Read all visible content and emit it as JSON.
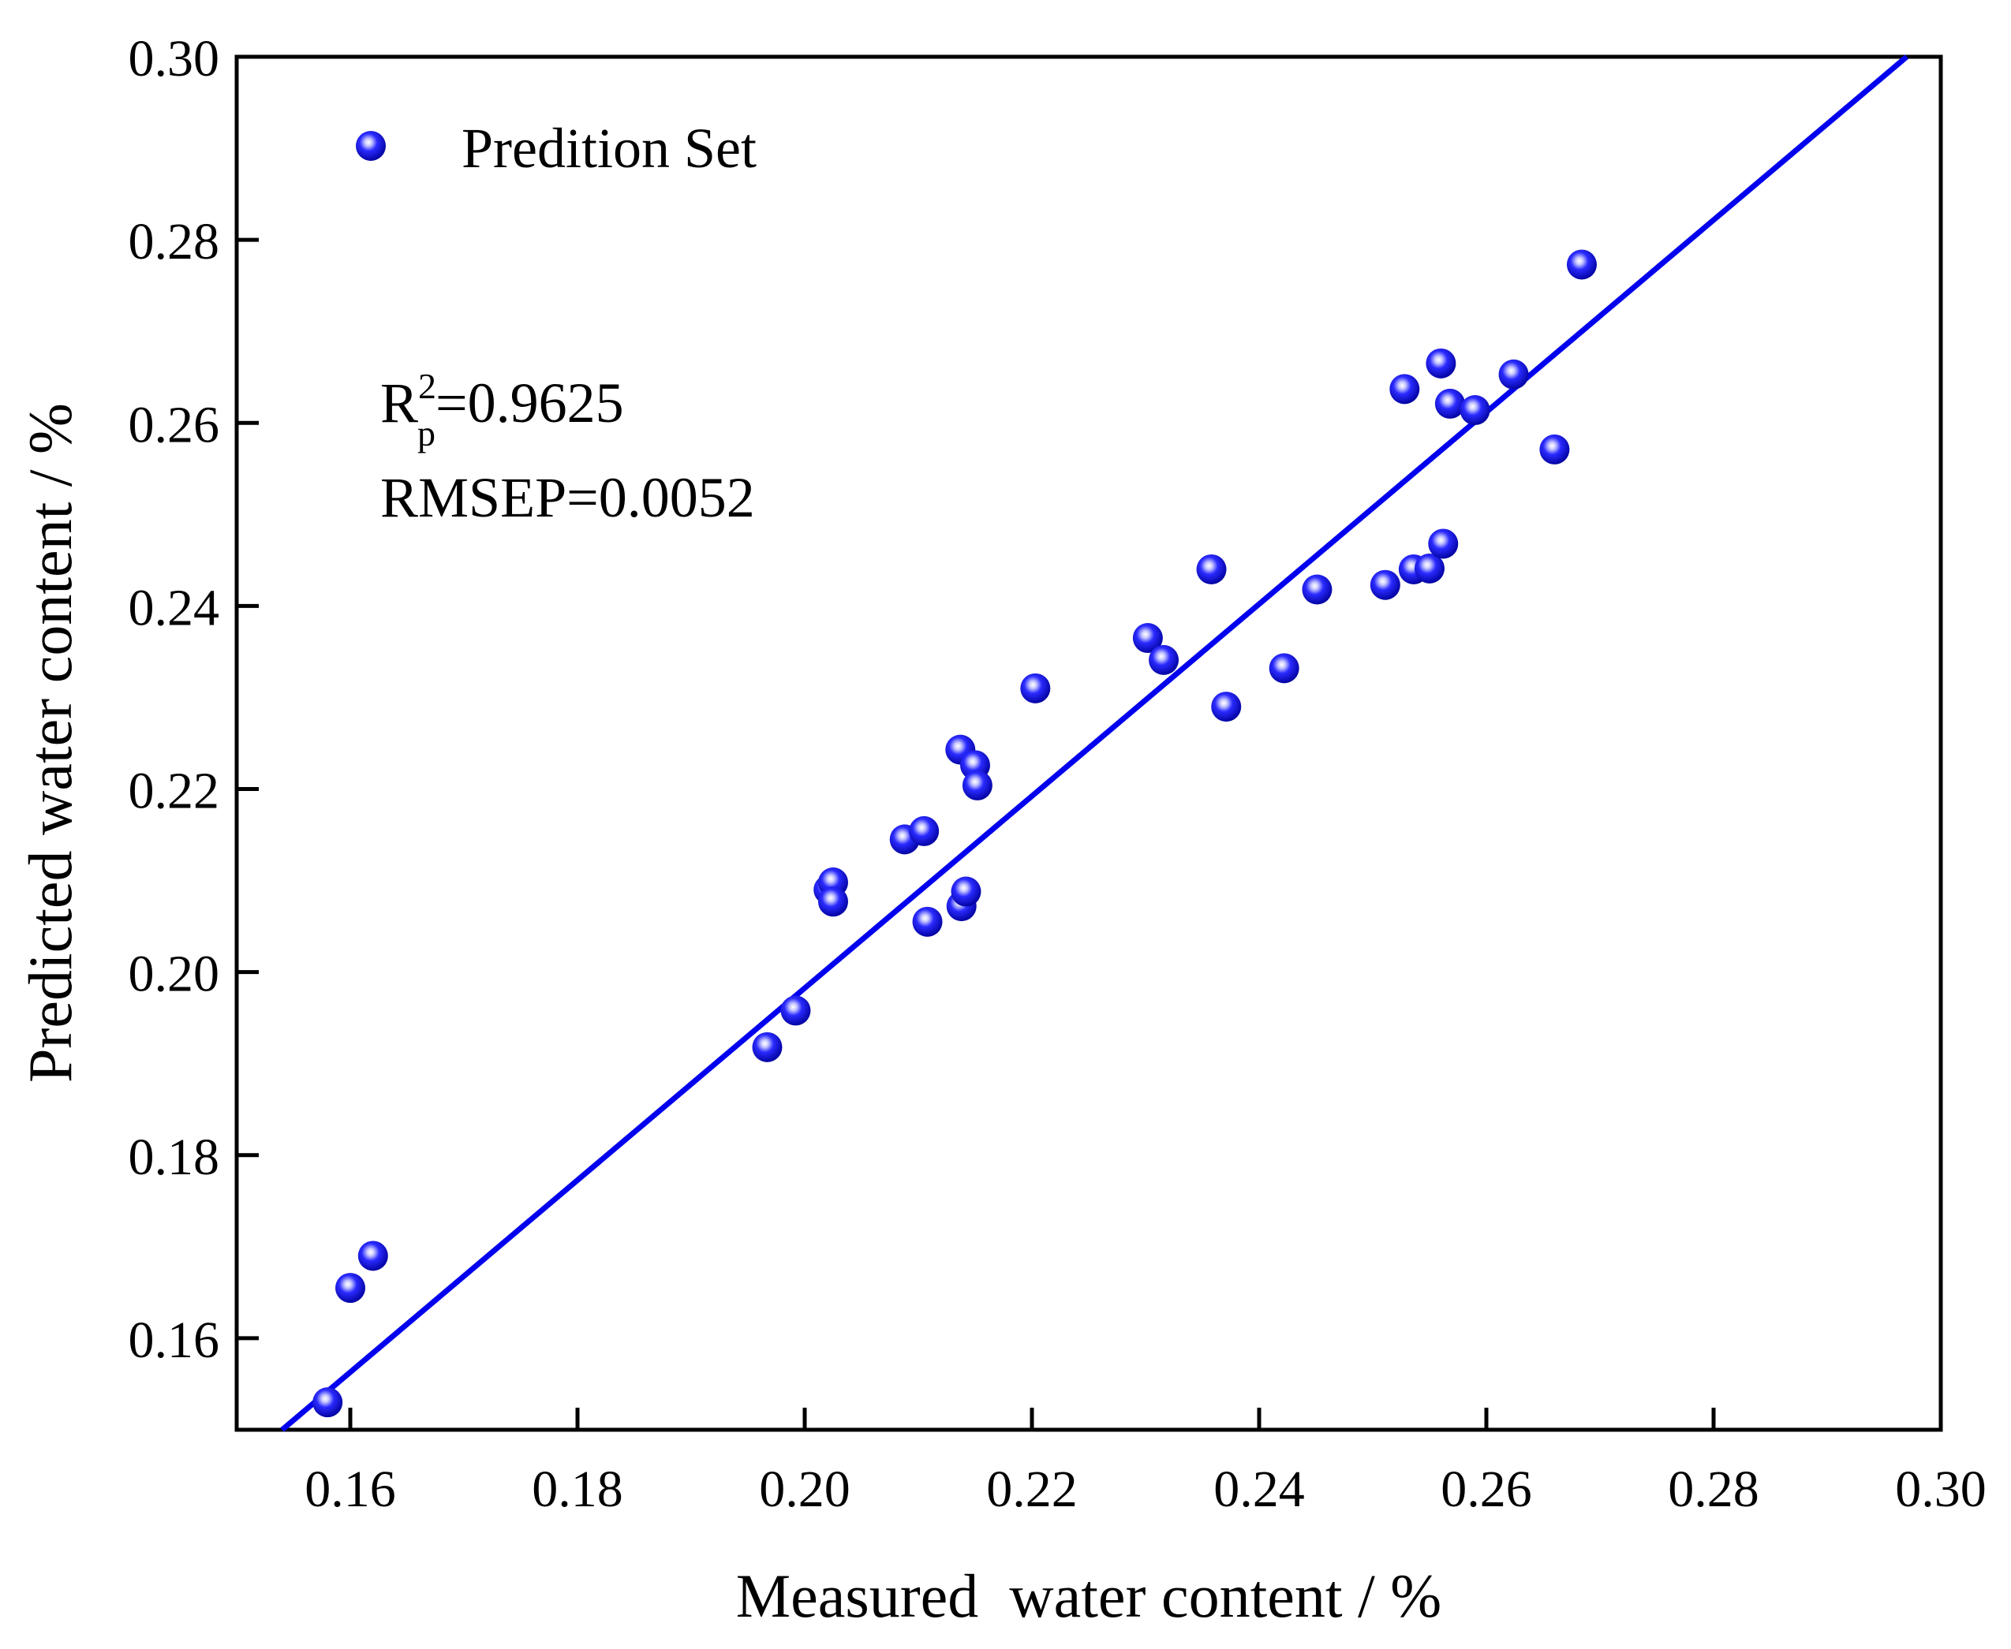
{
  "chart_data": {
    "type": "scatter",
    "xlabel": "Measured  water content / %",
    "ylabel": "Predicted water content / %",
    "xlim": [
      0.15,
      0.3
    ],
    "ylim": [
      0.15,
      0.3
    ],
    "x_ticks": [
      "0.16",
      "0.18",
      "0.20",
      "0.22",
      "0.24",
      "0.26",
      "0.28",
      "0.30"
    ],
    "y_ticks": [
      "0.16",
      "0.18",
      "0.20",
      "0.22",
      "0.24",
      "0.26",
      "0.28",
      "0.30"
    ],
    "legend": {
      "label": "Predition Set",
      "position": "top-left"
    },
    "annotation": {
      "r2_symbol": "R",
      "r2_superscript": "2",
      "r2_subscript": "p",
      "r2_value": "=0.9625",
      "rmsep": "RMSEP=0.0052"
    },
    "marker_color": "#0000ee",
    "line_color": "#0000ee",
    "fit_line": {
      "x": [
        0.154,
        0.297
      ],
      "y": [
        0.15,
        0.3
      ]
    },
    "series": [
      {
        "name": "Predition Set",
        "points": [
          [
            0.158,
            0.153
          ],
          [
            0.16,
            0.1655
          ],
          [
            0.162,
            0.169
          ],
          [
            0.1967,
            0.1918
          ],
          [
            0.1992,
            0.1958
          ],
          [
            0.2021,
            0.209
          ],
          [
            0.2025,
            0.2098
          ],
          [
            0.2025,
            0.2077
          ],
          [
            0.2088,
            0.2145
          ],
          [
            0.2105,
            0.2154
          ],
          [
            0.2108,
            0.2055
          ],
          [
            0.2137,
            0.2243
          ],
          [
            0.215,
            0.2226
          ],
          [
            0.2152,
            0.2204
          ],
          [
            0.2138,
            0.2072
          ],
          [
            0.2142,
            0.2088
          ],
          [
            0.2203,
            0.231
          ],
          [
            0.2302,
            0.2365
          ],
          [
            0.2316,
            0.2341
          ],
          [
            0.2358,
            0.244
          ],
          [
            0.2371,
            0.229
          ],
          [
            0.2422,
            0.2332
          ],
          [
            0.2451,
            0.2418
          ],
          [
            0.2511,
            0.2423
          ],
          [
            0.2528,
            0.2637
          ],
          [
            0.2536,
            0.244
          ],
          [
            0.255,
            0.2441
          ],
          [
            0.2562,
            0.2468
          ],
          [
            0.256,
            0.2665
          ],
          [
            0.2568,
            0.2621
          ],
          [
            0.259,
            0.2614
          ],
          [
            0.2624,
            0.2653
          ],
          [
            0.266,
            0.2571
          ],
          [
            0.2684,
            0.2773
          ]
        ]
      }
    ]
  }
}
